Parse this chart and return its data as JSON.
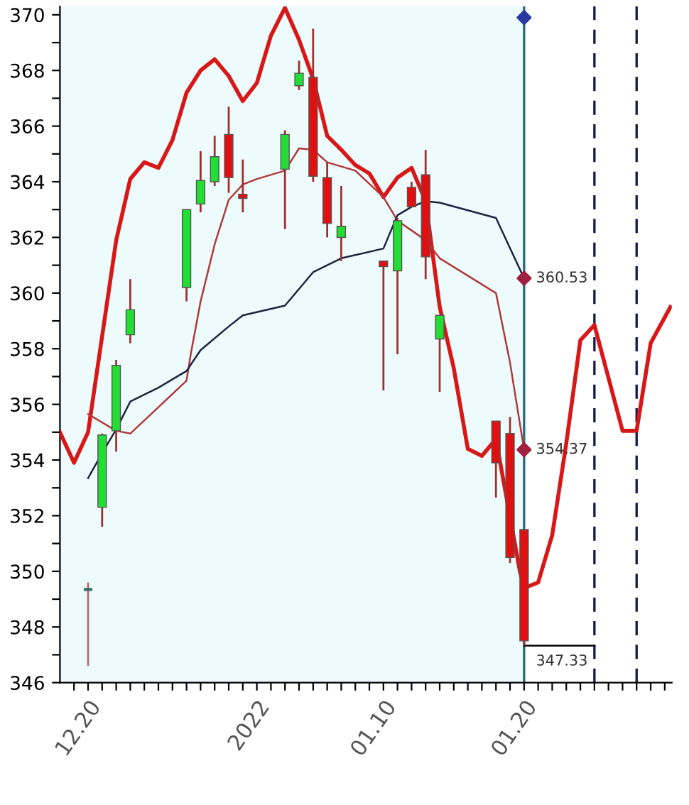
{
  "chart_data": {
    "type": "candlestick",
    "x": [
      "2021-12-20",
      "2021-12-21",
      "2021-12-22",
      "2021-12-23",
      "2021-12-27",
      "2021-12-28",
      "2021-12-29",
      "2021-12-30",
      "2021-12-31",
      "2022-01-03",
      "2022-01-04",
      "2022-01-05",
      "2022-01-06",
      "2022-01-07",
      "2022-01-10",
      "2022-01-11",
      "2022-01-12",
      "2022-01-13",
      "2022-01-14",
      "2022-01-18",
      "2022-01-19",
      "2022-01-20"
    ],
    "ohlc": [
      [
        349.35,
        349.6,
        346.6,
        349.35
      ],
      [
        352.3,
        354.95,
        351.6,
        354.9
      ],
      [
        355.05,
        357.6,
        354.3,
        357.4
      ],
      [
        358.5,
        360.5,
        358.2,
        359.4
      ],
      [
        360.2,
        363.0,
        359.7,
        363.0
      ],
      [
        363.2,
        365.1,
        362.9,
        364.05
      ],
      [
        364.0,
        365.65,
        363.85,
        364.9
      ],
      [
        365.7,
        366.7,
        363.6,
        364.15
      ],
      [
        363.55,
        364.8,
        362.9,
        363.4
      ],
      [
        364.45,
        365.85,
        362.3,
        365.7
      ],
      [
        367.45,
        368.35,
        367.3,
        367.9
      ],
      [
        367.75,
        369.5,
        364.0,
        364.2
      ],
      [
        364.15,
        364.7,
        362.0,
        362.5
      ],
      [
        362.0,
        363.85,
        361.15,
        362.4
      ],
      [
        361.15,
        361.15,
        356.5,
        360.95
      ],
      [
        360.8,
        362.7,
        357.8,
        362.6
      ],
      [
        363.8,
        364.0,
        363.1,
        363.1
      ],
      [
        364.25,
        365.15,
        360.5,
        361.3
      ],
      [
        358.35,
        359.2,
        356.45,
        359.2
      ],
      [
        355.4,
        355.4,
        352.65,
        353.9
      ],
      [
        354.95,
        355.55,
        350.3,
        350.5
      ],
      [
        351.5,
        351.5,
        347.33,
        347.5
      ]
    ],
    "colors": [
      "#3a6a6a",
      "#22dd33",
      "#22dd33",
      "#22dd33",
      "#22dd33",
      "#22dd33",
      "#22dd33",
      "#e01010",
      "#e01010",
      "#22dd33",
      "#22dd33",
      "#e01010",
      "#e01010",
      "#22dd33",
      "#e01010",
      "#22dd33",
      "#e01010",
      "#e01010",
      "#22dd33",
      "#e01010",
      "#e01010",
      "#e01010"
    ],
    "series": [
      {
        "type": "line",
        "color": "#d81818",
        "x": [
          "2021-12-18",
          "2021-12-19",
          "2021-12-20",
          "2021-12-22",
          "2021-12-23",
          "2021-12-24",
          "2021-12-25",
          "2021-12-26",
          "2021-12-27",
          "2021-12-28",
          "2021-12-29",
          "2021-12-30",
          "2021-12-31",
          "2022-01-01",
          "2022-01-02",
          "2022-01-03",
          "2022-01-04",
          "2022-01-05",
          "2022-01-06",
          "2022-01-07",
          "2022-01-08",
          "2022-01-09",
          "2022-01-10",
          "2022-01-11",
          "2022-01-12",
          "2022-01-13",
          "2022-01-14",
          "2022-01-15",
          "2022-01-16",
          "2022-01-17",
          "2022-01-18",
          "2022-01-19T16:48",
          "2022-01-20",
          "2022-01-21",
          "2022-01-22",
          "2022-01-23",
          "2022-01-24",
          "2022-01-25",
          "2022-01-26",
          "2022-01-27",
          "2022-01-28",
          "2022-01-29",
          "2022-01-30T09:36"
        ],
        "values": [
          355.0,
          353.9,
          355.0,
          361.9,
          364.1,
          364.7,
          364.5,
          365.5,
          367.2,
          368.0,
          368.4,
          367.8,
          366.9,
          367.55,
          369.25,
          370.25,
          369.1,
          367.7,
          365.65,
          365.15,
          364.6,
          364.3,
          363.45,
          364.15,
          364.5,
          363.3,
          359.5,
          357.3,
          354.4,
          354.15,
          354.75,
          350.0,
          349.4,
          349.6,
          351.3,
          354.6,
          358.3,
          358.85,
          356.95,
          355.05,
          355.05,
          358.2,
          359.5
        ]
      },
      {
        "type": "line",
        "color": "#b03a3a",
        "x": [
          "2021-12-20",
          "2021-12-21",
          "2021-12-22",
          "2021-12-23",
          "2021-12-25",
          "2021-12-27",
          "2021-12-27T07:12",
          "2021-12-28",
          "2021-12-29",
          "2021-12-30",
          "2021-12-31",
          "2022-01-01",
          "2022-01-03",
          "2022-01-04",
          "2022-01-05",
          "2022-01-06",
          "2022-01-08",
          "2022-01-10",
          "2022-01-11",
          "2022-01-12",
          "2022-01-13",
          "2022-01-14",
          "2022-01-18",
          "2022-01-19",
          "2022-01-20"
        ],
        "values": [
          355.65,
          355.35,
          355.05,
          354.95,
          355.9,
          356.85,
          357.8,
          359.7,
          361.75,
          363.35,
          363.9,
          364.1,
          364.4,
          365.2,
          365.15,
          364.7,
          364.4,
          363.45,
          362.6,
          362.25,
          361.9,
          361.25,
          360.0,
          357.5,
          354.37
        ]
      },
      {
        "type": "line",
        "color": "#1c2440",
        "x": [
          "2021-12-20",
          "2021-12-21",
          "2021-12-22",
          "2021-12-23",
          "2021-12-25",
          "2021-12-27",
          "2021-12-28",
          "2021-12-30",
          "2021-12-31",
          "2022-01-03",
          "2022-01-05",
          "2022-01-07",
          "2022-01-10",
          "2022-01-11",
          "2022-01-12",
          "2022-01-13",
          "2022-01-14",
          "2022-01-18",
          "2022-01-20"
        ],
        "values": [
          353.35,
          354.25,
          355.1,
          356.1,
          356.6,
          357.2,
          357.95,
          358.8,
          359.2,
          359.55,
          360.75,
          361.25,
          361.6,
          362.8,
          363.1,
          363.3,
          363.25,
          362.7,
          360.53
        ]
      },
      {
        "type": "scatter",
        "marker": "diamond",
        "color": "#a02040",
        "x": [
          "2022-01-20",
          "2022-01-20"
        ],
        "values": [
          360.53,
          354.37
        ]
      },
      {
        "type": "scatter",
        "marker": "diamond",
        "color": "#2a3aa0",
        "x": [
          "2022-01-20"
        ],
        "values": [
          369.9
        ]
      },
      {
        "type": "line",
        "color": "#000000",
        "x": [
          "2022-01-20",
          "2022-01-25"
        ],
        "values": [
          347.33,
          347.33
        ]
      }
    ],
    "annotations": [
      {
        "text": "360.53",
        "x": "2022-01-20",
        "y": 360.53
      },
      {
        "text": "354.37",
        "x": "2022-01-20",
        "y": 354.37
      },
      {
        "text": "347.33",
        "x": "2022-01-20",
        "y": 347.33
      }
    ],
    "ref_lines": [
      {
        "axis": "x",
        "value": "2022-01-20",
        "color": "#2a6a7a"
      },
      {
        "axis": "x",
        "value": "2022-01-25",
        "color": "#1a1a4d",
        "line_style": "dashed"
      },
      {
        "axis": "x",
        "value": "2022-01-28",
        "color": "#1a1a4d",
        "line_style": "dashed"
      }
    ],
    "bands": [
      {
        "axis": "x",
        "from": "2021-12-18",
        "to": "2022-01-20",
        "color": "#eefbfc"
      }
    ],
    "xlim": [
      "2021-12-18",
      "2022-01-30T12:00"
    ],
    "xticks": [
      {
        "value": "2021-12-19",
        "label": null
      },
      {
        "value": "2021-12-20",
        "label": "12.20"
      },
      {
        "value": "2021-12-21",
        "label": null
      },
      {
        "value": "2021-12-22",
        "label": null
      },
      {
        "value": "2021-12-23",
        "label": null
      },
      {
        "value": "2021-12-24",
        "label": null
      },
      {
        "value": "2021-12-25",
        "label": null
      },
      {
        "value": "2021-12-26",
        "label": null
      },
      {
        "value": "2021-12-27",
        "label": null
      },
      {
        "value": "2021-12-28",
        "label": null
      },
      {
        "value": "2021-12-29",
        "label": null
      },
      {
        "value": "2021-12-30",
        "label": null
      },
      {
        "value": "2021-12-31",
        "label": null
      },
      {
        "value": "2022-01-01",
        "label": "2022"
      },
      {
        "value": "2022-01-02",
        "label": null
      },
      {
        "value": "2022-01-03",
        "label": null
      },
      {
        "value": "2022-01-04",
        "label": null
      },
      {
        "value": "2022-01-05",
        "label": null
      },
      {
        "value": "2022-01-06",
        "label": null
      },
      {
        "value": "2022-01-07",
        "label": null
      },
      {
        "value": "2022-01-08",
        "label": null
      },
      {
        "value": "2022-01-09",
        "label": null
      },
      {
        "value": "2022-01-10",
        "label": "01.10"
      },
      {
        "value": "2022-01-11",
        "label": null
      },
      {
        "value": "2022-01-12",
        "label": null
      },
      {
        "value": "2022-01-13",
        "label": null
      },
      {
        "value": "2022-01-14",
        "label": null
      },
      {
        "value": "2022-01-15",
        "label": null
      },
      {
        "value": "2022-01-16",
        "label": null
      },
      {
        "value": "2022-01-17",
        "label": null
      },
      {
        "value": "2022-01-18",
        "label": null
      },
      {
        "value": "2022-01-19",
        "label": null
      },
      {
        "value": "2022-01-20",
        "label": "01.20"
      },
      {
        "value": "2022-01-21",
        "label": null
      },
      {
        "value": "2022-01-22",
        "label": null
      },
      {
        "value": "2022-01-23",
        "label": null
      },
      {
        "value": "2022-01-24",
        "label": null
      },
      {
        "value": "2022-01-25",
        "label": null
      },
      {
        "value": "2022-01-26",
        "label": null
      },
      {
        "value": "2022-01-27",
        "label": null
      },
      {
        "value": "2022-01-28",
        "label": null
      },
      {
        "value": "2022-01-29",
        "label": null
      },
      {
        "value": "2022-01-30",
        "label": null
      }
    ],
    "ylim": [
      346,
      370.3
    ],
    "yticks": [
      346,
      {
        "value": 347,
        "label": null
      },
      348,
      {
        "value": 349,
        "label": null
      },
      350,
      {
        "value": 351,
        "label": null
      },
      352,
      {
        "value": 353,
        "label": null
      },
      354,
      {
        "value": 355,
        "label": null
      },
      356,
      {
        "value": 357,
        "label": null
      },
      358,
      {
        "value": 359,
        "label": null
      },
      360,
      {
        "value": 361,
        "label": null
      },
      362,
      {
        "value": 363,
        "label": null
      },
      364,
      {
        "value": 365,
        "label": null
      },
      366,
      {
        "value": 367,
        "label": null
      },
      368,
      {
        "value": 369,
        "label": null
      },
      370
    ],
    "grid": false,
    "legend": false
  }
}
